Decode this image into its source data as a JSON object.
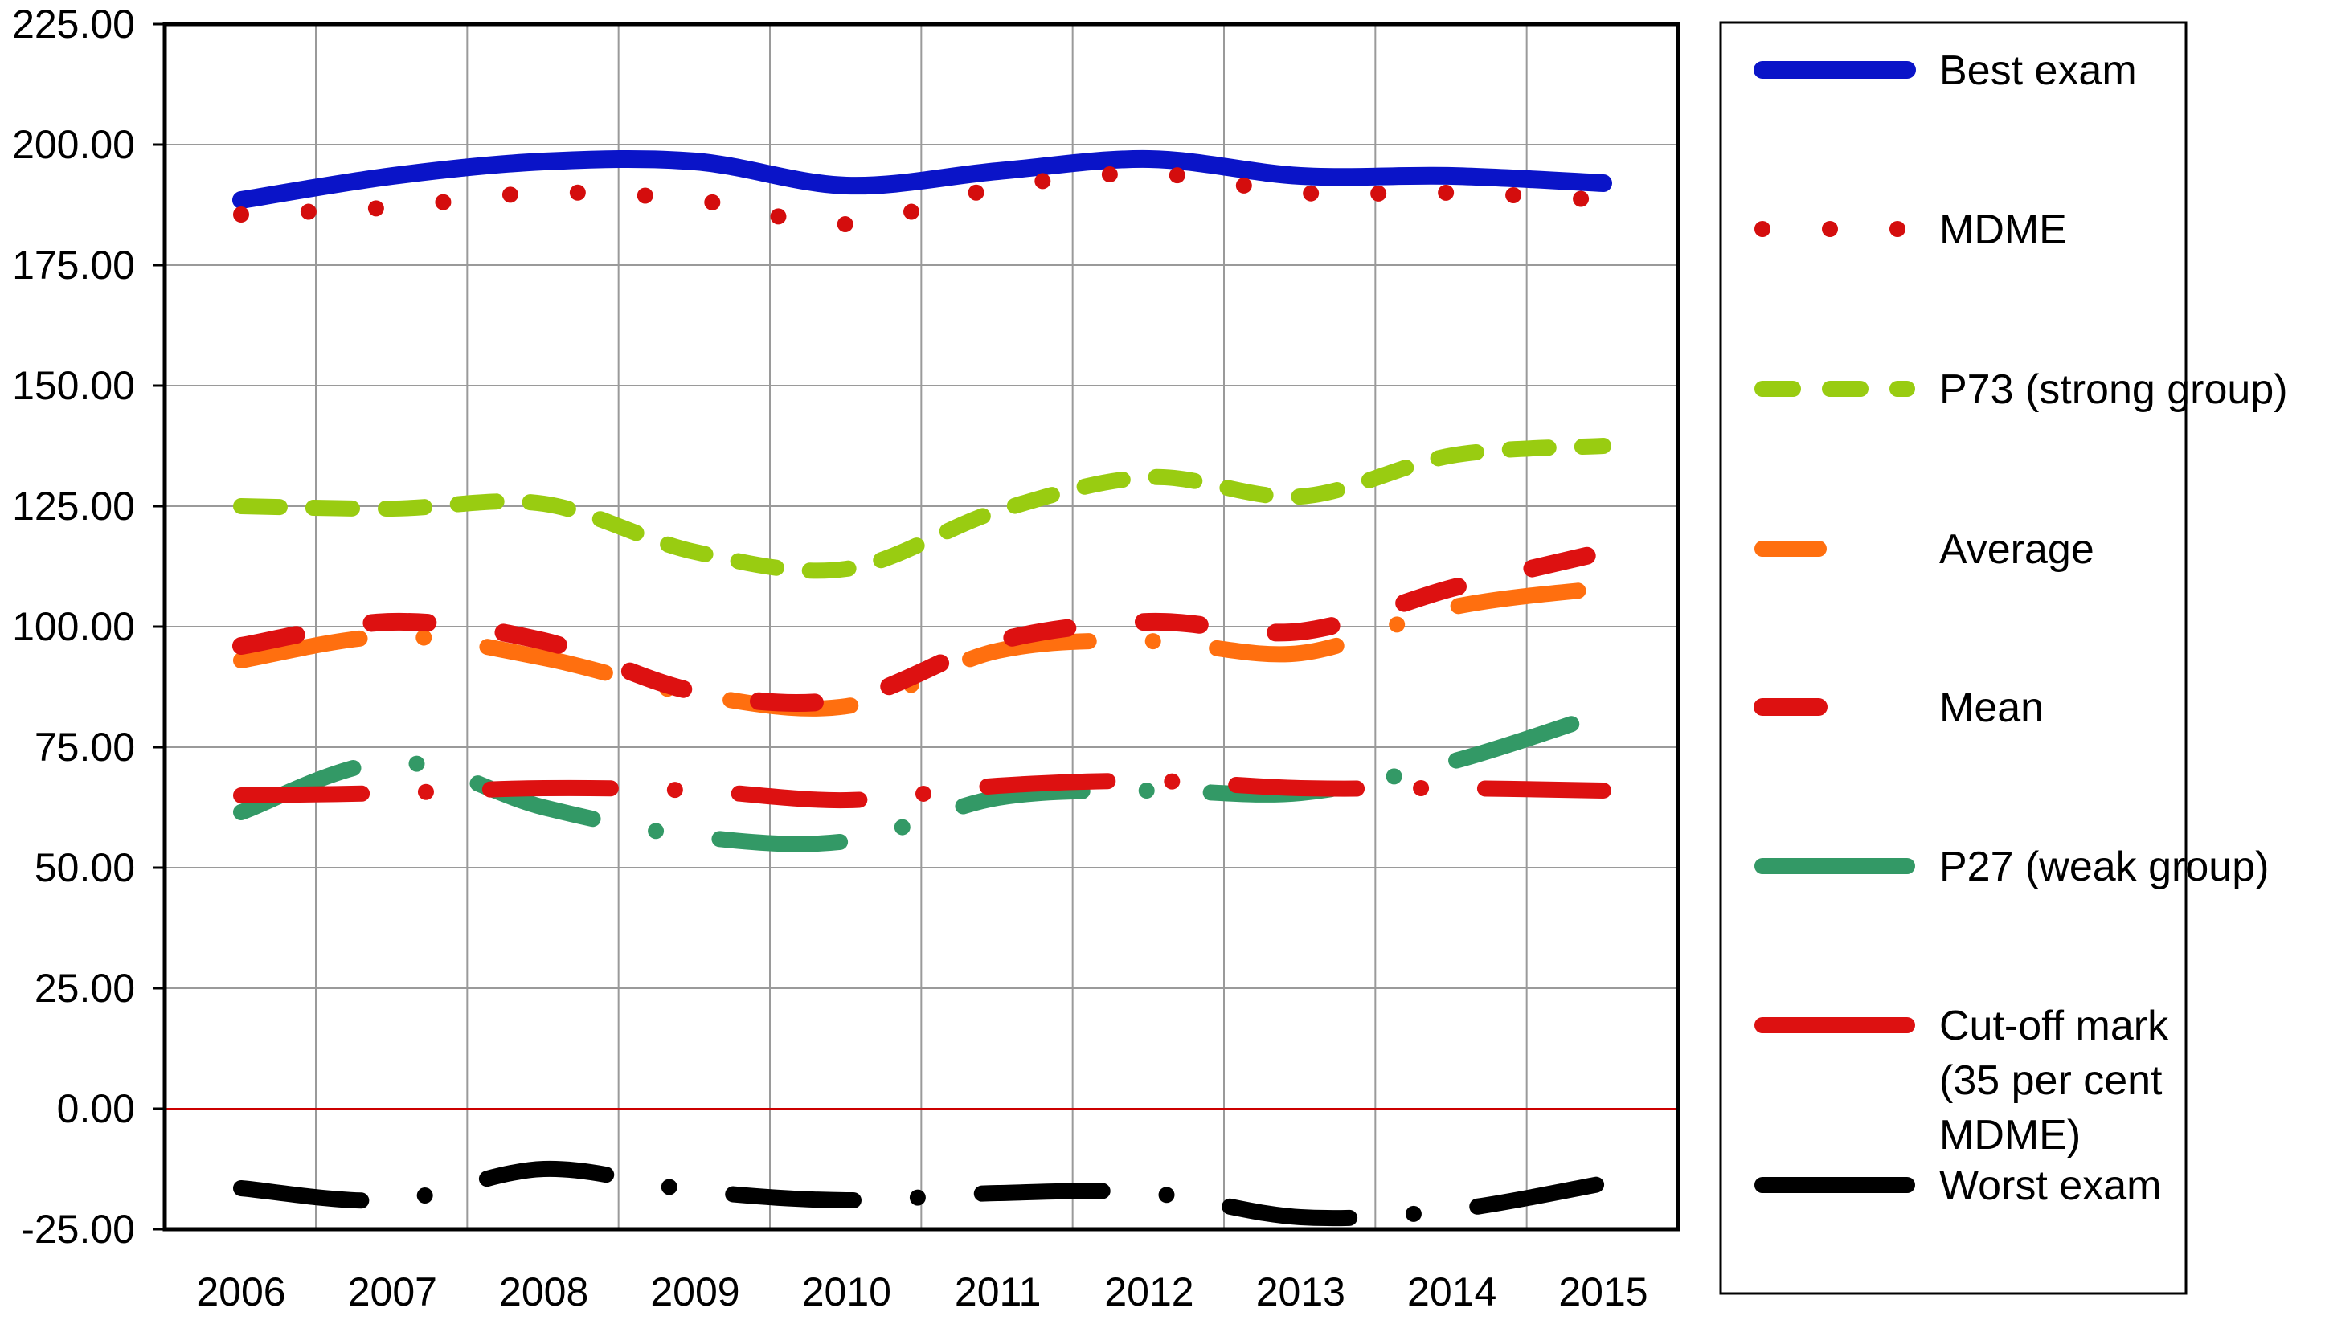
{
  "chart_data": {
    "type": "line",
    "title": "",
    "xlabel": "",
    "ylabel": "",
    "categories": [
      "2006",
      "2007",
      "2008",
      "2009",
      "2010",
      "2011",
      "2012",
      "2013",
      "2014",
      "2015"
    ],
    "y_ticks": [
      "225.00",
      "200.00",
      "175.00",
      "150.00",
      "125.00",
      "100.00",
      "75.00",
      "50.00",
      "25.00",
      "0.00",
      "-25.00"
    ],
    "ylim": [
      -25,
      225
    ],
    "grid": true,
    "zero_line_color": "#cc0000",
    "legend_position": "right",
    "series": [
      {
        "name": "Best exam",
        "color": "#0a14c8",
        "style": "solid",
        "values": [
          188.5,
          193.5,
          196.5,
          196.5,
          191.5,
          194.5,
          197.0,
          193.5,
          193.5,
          192.0
        ]
      },
      {
        "name": "MDME",
        "color": "#d40d0d",
        "style": "dotted",
        "values": [
          185.5,
          187.0,
          190.0,
          188.5,
          183.5,
          191.0,
          194.0,
          190.0,
          190.0,
          188.5
        ]
      },
      {
        "name": "P73 (strong group)",
        "color": "#99cc11",
        "style": "dashed",
        "values": [
          125.0,
          124.5,
          125.5,
          115.5,
          112.0,
          124.0,
          131.0,
          127.0,
          135.5,
          137.5
        ]
      },
      {
        "name": "Average",
        "color": "#ff6f0f",
        "style": "dash-dot",
        "values": [
          93.0,
          98.0,
          93.5,
          86.0,
          83.5,
          95.0,
          97.0,
          94.5,
          104.0,
          108.0
        ]
      },
      {
        "name": "Mean",
        "color": "#dd1111",
        "style": "long-dash",
        "values": [
          96.0,
          101.0,
          97.0,
          86.5,
          85.0,
          97.0,
          101.0,
          99.0,
          108.0,
          115.5
        ]
      },
      {
        "name": "P27 (weak group)",
        "color": "#339966",
        "style": "dash-dot",
        "values": [
          61.5,
          72.0,
          62.5,
          56.5,
          55.5,
          64.5,
          66.0,
          65.5,
          72.0,
          82.0
        ]
      },
      {
        "name": "Cut-off mark (35 per cent MDME)",
        "name_lines": [
          "Cut-off mark",
          "(35 per cent",
          "MDME)"
        ],
        "color": "#dd1111",
        "style": "dash-dot",
        "values": [
          65.0,
          65.5,
          66.5,
          66.0,
          64.0,
          67.0,
          68.0,
          66.5,
          66.5,
          66.0
        ]
      },
      {
        "name": "Worst exam",
        "color": "#000000",
        "style": "dash-dot",
        "values": [
          -16.5,
          -19.0,
          -12.5,
          -17.0,
          -19.0,
          -17.5,
          -17.5,
          -22.5,
          -21.0,
          -15.5
        ]
      }
    ]
  }
}
